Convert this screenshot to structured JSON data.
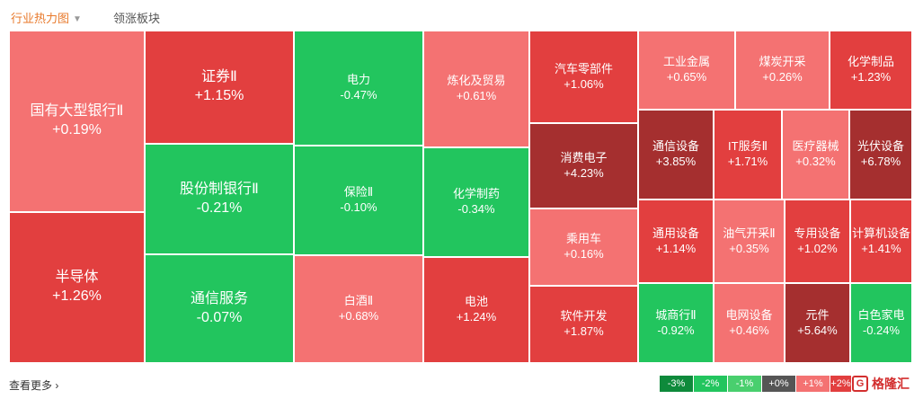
{
  "tabs": {
    "active": "行业热力图",
    "second": "领涨板块"
  },
  "colors": {
    "d3": "#a52f2f",
    "d2": "#e23f3f",
    "d1": "#f47272",
    "g1": "#49cf6e",
    "g2": "#22c55e",
    "g3": "#0e8a3b",
    "neutral": "#555555"
  },
  "tiles": [
    {
      "name": "国有大型银行Ⅱ",
      "change": "+0.19%"
    },
    {
      "name": "半导体",
      "change": "+1.26%"
    },
    {
      "name": "证券Ⅱ",
      "change": "+1.15%"
    },
    {
      "name": "股份制银行Ⅱ",
      "change": "-0.21%"
    },
    {
      "name": "通信服务",
      "change": "-0.07%"
    },
    {
      "name": "电力",
      "change": "-0.47%"
    },
    {
      "name": "保险Ⅱ",
      "change": "-0.10%"
    },
    {
      "name": "白酒Ⅱ",
      "change": "+0.68%"
    },
    {
      "name": "炼化及贸易",
      "change": "+0.61%"
    },
    {
      "name": "化学制药",
      "change": "-0.34%"
    },
    {
      "name": "电池",
      "change": "+1.24%"
    },
    {
      "name": "汽车零部件",
      "change": "+1.06%"
    },
    {
      "name": "消费电子",
      "change": "+4.23%"
    },
    {
      "name": "乘用车",
      "change": "+0.16%"
    },
    {
      "name": "软件开发",
      "change": "+1.87%"
    },
    {
      "name": "工业金属",
      "change": "+0.65%"
    },
    {
      "name": "煤炭开采",
      "change": "+0.26%"
    },
    {
      "name": "化学制品",
      "change": "+1.23%"
    },
    {
      "name": "通信设备",
      "change": "+3.85%"
    },
    {
      "name": "IT服务Ⅱ",
      "change": "+1.71%"
    },
    {
      "name": "医疗器械",
      "change": "+0.32%"
    },
    {
      "name": "光伏设备",
      "change": "+6.78%"
    },
    {
      "name": "通用设备",
      "change": "+1.14%"
    },
    {
      "name": "油气开采Ⅱ",
      "change": "+0.35%"
    },
    {
      "name": "专用设备",
      "change": "+1.02%"
    },
    {
      "name": "计算机设备",
      "change": "+1.41%"
    },
    {
      "name": "城商行Ⅱ",
      "change": "-0.92%"
    },
    {
      "name": "电网设备",
      "change": "+0.46%"
    },
    {
      "name": "元件",
      "change": "+5.64%"
    },
    {
      "name": "白色家电",
      "change": "-0.24%"
    }
  ],
  "footer": {
    "more": "查看更多",
    "more_arrow": "›",
    "legend": [
      "-3%",
      "-2%",
      "-1%",
      "+0%",
      "+1%",
      "+2%"
    ],
    "logo_mark": "G",
    "logo_text": "格隆汇"
  }
}
